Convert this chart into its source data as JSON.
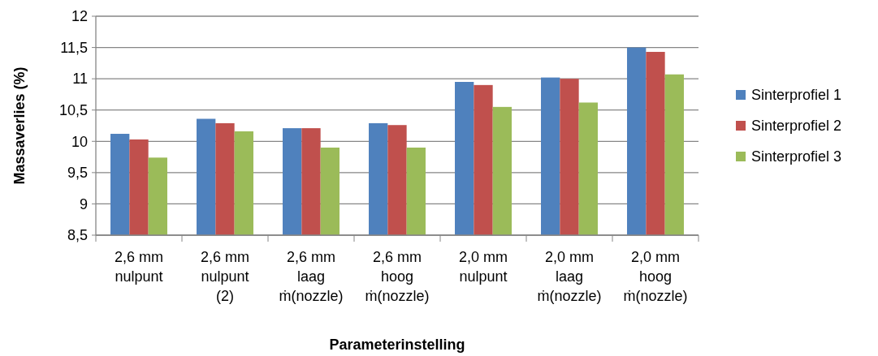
{
  "chart_data": {
    "type": "bar",
    "xlabel": "Parameterinstelling",
    "ylabel": "Massaverlies (%)",
    "categories": [
      "2,6 mm\nnulpunt",
      "2,6 mm\nnulpunt\n(2)",
      "2,6 mm\nlaag\nṁ(nozzle)",
      "2,6 mm\nhoog\nṁ(nozzle)",
      "2,0 mm\nnulpunt",
      "2,0 mm\nlaag\nṁ(nozzle)",
      "2,0 mm\nhoog\nṁ(nozzle)"
    ],
    "series": [
      {
        "name": "Sinterprofiel 1",
        "color": "#4f81bd",
        "values": [
          10.12,
          10.36,
          10.21,
          10.29,
          10.95,
          11.02,
          11.5
        ]
      },
      {
        "name": "Sinterprofiel 2",
        "color": "#c0504d",
        "values": [
          10.03,
          10.29,
          10.21,
          10.26,
          10.9,
          11.0,
          11.43
        ]
      },
      {
        "name": "Sinterprofiel 3",
        "color": "#9bbb59",
        "values": [
          9.74,
          10.16,
          9.9,
          9.9,
          10.55,
          10.62,
          11.07
        ]
      }
    ],
    "ylim": [
      8.5,
      12
    ],
    "yticks": [
      {
        "value": 8.5,
        "label": "8,5"
      },
      9,
      {
        "value": 9.5,
        "label": "9,5"
      },
      10,
      {
        "value": 10.5,
        "label": "10,5"
      },
      11,
      {
        "value": 11.5,
        "label": "11,5"
      },
      12
    ],
    "grid": "y",
    "legend": "right"
  }
}
